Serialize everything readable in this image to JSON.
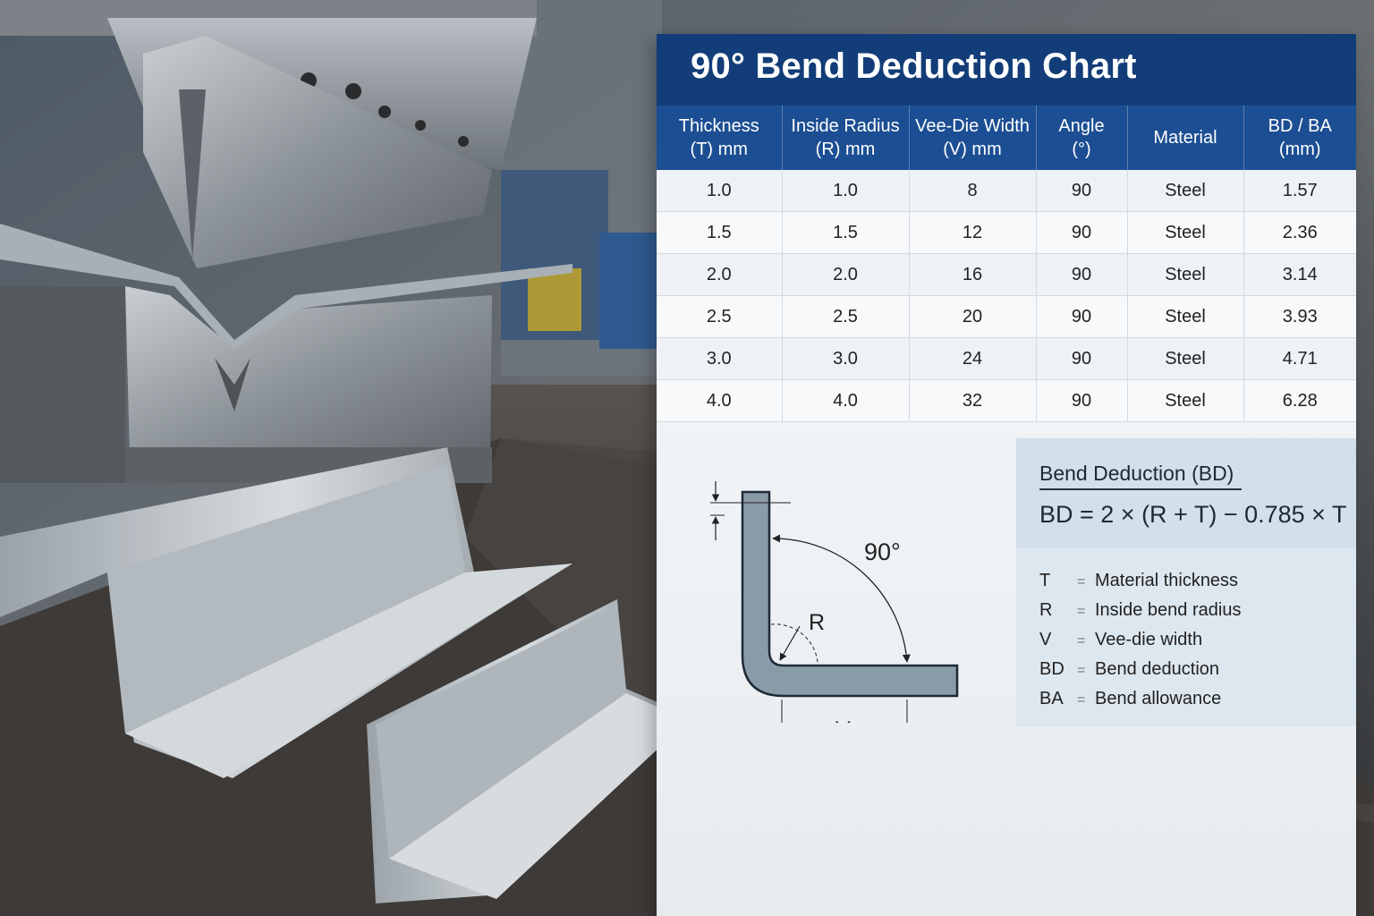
{
  "chart_title": "90° Bend Deduction Chart",
  "table": {
    "headers": [
      [
        "Thickness",
        "(T) mm"
      ],
      [
        "Inside Radius",
        "(R) mm"
      ],
      [
        "Vee-Die Width",
        "(V) mm"
      ],
      [
        "Angle",
        "(°)"
      ],
      [
        "Material",
        ""
      ],
      [
        "BD / BA",
        "(mm)"
      ]
    ],
    "rows": [
      [
        "1.0",
        "1.0",
        "8",
        "90",
        "Steel",
        "1.57"
      ],
      [
        "1.5",
        "1.5",
        "12",
        "90",
        "Steel",
        "2.36"
      ],
      [
        "2.0",
        "2.0",
        "16",
        "90",
        "Steel",
        "3.14"
      ],
      [
        "2.5",
        "2.5",
        "20",
        "90",
        "Steel",
        "3.93"
      ],
      [
        "3.0",
        "3.0",
        "24",
        "90",
        "Steel",
        "4.71"
      ],
      [
        "4.0",
        "4.0",
        "32",
        "90",
        "Steel",
        "6.28"
      ]
    ]
  },
  "diagram": {
    "angle_label": "90°",
    "radius_label": "R",
    "width_label": "V"
  },
  "formula": {
    "title": "Bend Deduction (BD)",
    "expression": "BD = 2 × (R + T) − 0.785 × T"
  },
  "legend": [
    {
      "symbol": "T",
      "eq": "=",
      "meaning": "Material thickness"
    },
    {
      "symbol": "R",
      "eq": "=",
      "meaning": "Inside bend radius"
    },
    {
      "symbol": "V",
      "eq": "=",
      "meaning": "Vee-die width"
    },
    {
      "symbol": "BD",
      "eq": "=",
      "meaning": "Bend deduction"
    },
    {
      "symbol": "BA",
      "eq": "=",
      "meaning": "Bend allowance"
    }
  ],
  "colors": {
    "title_bar": "#123d78",
    "header_row": "#1c4e93",
    "steel_part": "#8a9ba8"
  }
}
